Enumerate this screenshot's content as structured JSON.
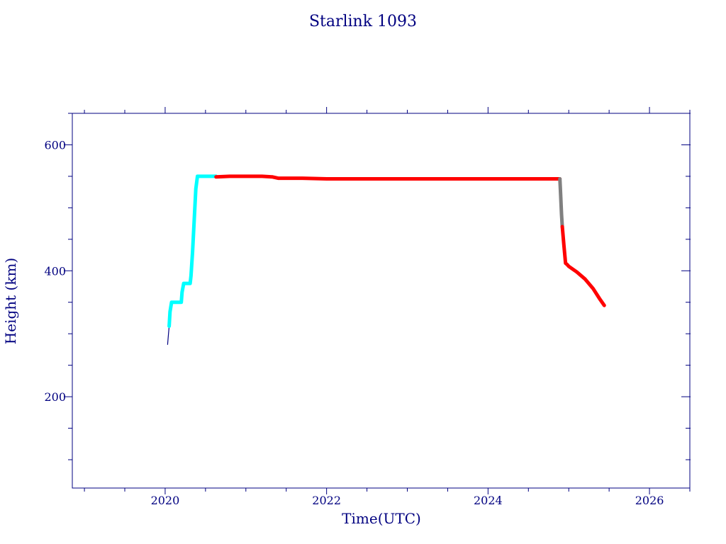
{
  "chart_data": {
    "type": "line",
    "title": "Starlink 1093",
    "xlabel": "Time(UTC)",
    "ylabel": "Height (km)",
    "xlim": [
      2018.85,
      2026.5
    ],
    "ylim": [
      55,
      650
    ],
    "x_ticks": [
      2020,
      2022,
      2024,
      2026
    ],
    "x_tick_labels": [
      "2020",
      "2022",
      "2024",
      "2026"
    ],
    "y_ticks": [
      200,
      400,
      600
    ],
    "y_tick_labels": [
      "200",
      "400",
      "600"
    ],
    "x_minor_step": 0.5,
    "y_minor_step": 50,
    "grid": false,
    "legend": "none",
    "series": [
      {
        "color": "#000080",
        "x": [
          2020.03,
          2020.04,
          2020.05
        ],
        "y": [
          283,
          298,
          312
        ]
      },
      {
        "color": "#00ffff",
        "x": [
          2020.05,
          2020.06,
          2020.08,
          2020.1,
          2020.14,
          2020.18,
          2020.2,
          2020.21,
          2020.23,
          2020.26,
          2020.29,
          2020.31,
          2020.32,
          2020.34,
          2020.36,
          2020.38,
          2020.4,
          2020.45,
          2020.55,
          2020.63
        ],
        "y": [
          312,
          335,
          350,
          350,
          350,
          350,
          350,
          366,
          380,
          380,
          380,
          380,
          392,
          430,
          480,
          530,
          550,
          550,
          550,
          550
        ]
      },
      {
        "color": "#ff0000",
        "x": [
          2020.63,
          2020.8,
          2021.0,
          2021.2,
          2021.33,
          2021.4,
          2021.7,
          2022.0,
          2022.5,
          2023.0,
          2023.5,
          2024.0,
          2024.5,
          2024.8,
          2024.89
        ],
        "y": [
          549,
          550,
          550,
          550,
          549,
          547,
          547,
          546,
          546,
          546,
          546,
          546,
          546,
          546,
          546
        ]
      },
      {
        "color": "#808080",
        "x": [
          2024.89,
          2024.9,
          2024.91,
          2024.92
        ],
        "y": [
          546,
          520,
          490,
          470
        ]
      },
      {
        "color": "#ff0000",
        "x": [
          2024.92,
          2024.94,
          2024.96,
          2024.98,
          2025.0,
          2025.1,
          2025.2,
          2025.3,
          2025.38,
          2025.44
        ],
        "y": [
          470,
          440,
          412,
          410,
          407,
          398,
          387,
          372,
          356,
          345
        ]
      }
    ]
  }
}
